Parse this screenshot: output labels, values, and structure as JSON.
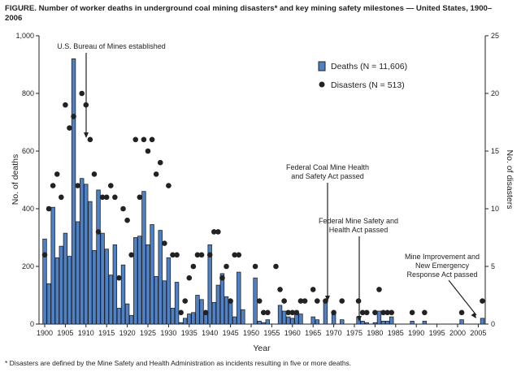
{
  "chart_data": {
    "type": "bar+scatter",
    "title": "FIGURE. Number of worker deaths in underground coal mining disasters* and key mining safety milestones — United States, 1900–2006",
    "footnote": "* Disasters are defined by the Mine Safety and Health Administration as incidents resulting in five or more deaths.",
    "xlabel": "Year",
    "ylabel": "No. of deaths",
    "y2label": "No. of disasters",
    "xlim": [
      1900,
      2006
    ],
    "ylim": [
      0,
      1000
    ],
    "y2lim": [
      0,
      25
    ],
    "x_ticks": [
      1900,
      1905,
      1910,
      1915,
      1920,
      1925,
      1930,
      1935,
      1940,
      1945,
      1950,
      1955,
      1960,
      1965,
      1970,
      1975,
      1980,
      1985,
      1990,
      1995,
      2000,
      2005
    ],
    "y_ticks": [
      "0",
      "200",
      "400",
      "600",
      "800",
      "1,000"
    ],
    "y2_ticks": [
      "0",
      "5",
      "10",
      "15",
      "20",
      "25"
    ],
    "legend": {
      "placement": "top-right",
      "deaths": "Deaths (N = 11,606)",
      "disasters": "Disasters (N = 513)"
    },
    "colors": {
      "bar": "#4f81c7",
      "dot": "#222222"
    },
    "deaths": {
      "1900": 295,
      "1901": 140,
      "1902": 405,
      "1903": 230,
      "1904": 270,
      "1905": 315,
      "1906": 235,
      "1907": 920,
      "1908": 355,
      "1909": 505,
      "1910": 485,
      "1911": 425,
      "1912": 255,
      "1913": 465,
      "1914": 315,
      "1915": 260,
      "1916": 170,
      "1917": 275,
      "1918": 55,
      "1919": 205,
      "1920": 70,
      "1921": 30,
      "1922": 300,
      "1923": 305,
      "1924": 460,
      "1925": 275,
      "1926": 345,
      "1927": 165,
      "1928": 325,
      "1929": 150,
      "1930": 230,
      "1931": 55,
      "1932": 145,
      "1933": 5,
      "1934": 20,
      "1935": 35,
      "1936": 40,
      "1937": 100,
      "1938": 85,
      "1939": 40,
      "1940": 275,
      "1941": 75,
      "1942": 135,
      "1943": 175,
      "1944": 95,
      "1945": 75,
      "1946": 25,
      "1947": 180,
      "1948": 50,
      "1951": 160,
      "1952": 10,
      "1953": 5,
      "1954": 15,
      "1957": 65,
      "1958": 45,
      "1959": 25,
      "1960": 20,
      "1961": 45,
      "1962": 35,
      "1965": 25,
      "1966": 15,
      "1968": 80,
      "1970": 40,
      "1972": 15,
      "1976": 25,
      "1977": 10,
      "1978": 5,
      "1980": 5,
      "1981": 45,
      "1982": 10,
      "1983": 10,
      "1984": 25,
      "1989": 10,
      "1992": 10,
      "2001": 15,
      "2006": 20
    },
    "disasters": {
      "1900": 6,
      "1901": 10,
      "1902": 12,
      "1903": 13,
      "1904": 11,
      "1905": 19,
      "1906": 17,
      "1907": 18,
      "1908": 12,
      "1909": 20,
      "1910": 19,
      "1911": 16,
      "1912": 13,
      "1913": 8,
      "1914": 11,
      "1915": 11,
      "1916": 12,
      "1917": 11,
      "1918": 4,
      "1919": 10,
      "1920": 9,
      "1921": 6,
      "1922": 16,
      "1923": 11,
      "1924": 16,
      "1925": 15,
      "1926": 16,
      "1927": 13,
      "1928": 14,
      "1929": 7,
      "1930": 12,
      "1931": 6,
      "1932": 6,
      "1933": 1,
      "1934": 2,
      "1935": 4,
      "1936": 5,
      "1937": 6,
      "1938": 6,
      "1939": 1,
      "1940": 6,
      "1941": 8,
      "1942": 8,
      "1943": 4,
      "1944": 5,
      "1945": 2,
      "1946": 6,
      "1947": 6,
      "1951": 5,
      "1952": 2,
      "1953": 1,
      "1954": 1,
      "1956": 5,
      "1957": 3,
      "1958": 2,
      "1959": 1,
      "1960": 1,
      "1961": 1,
      "1962": 2,
      "1963": 2,
      "1965": 3,
      "1966": 2,
      "1968": 2,
      "1970": 1,
      "1972": 2,
      "1976": 2,
      "1977": 1,
      "1978": 1,
      "1980": 1,
      "1981": 3,
      "1982": 1,
      "1983": 1,
      "1984": 1,
      "1989": 1,
      "1992": 1,
      "2001": 1,
      "2006": 2
    },
    "annotations": [
      {
        "year": 1910,
        "lines": [
          "U.S. Bureau of Mines established"
        ]
      },
      {
        "year": 1969,
        "lines": [
          "Federal Coal Mine Health",
          "and Safety Act passed"
        ]
      },
      {
        "year": 1977,
        "lines": [
          "Federal Mine Safety and",
          "Health Act passed"
        ]
      },
      {
        "year": 2006,
        "lines": [
          "Mine Improvement and",
          "New Emergency",
          "Response Act passed"
        ]
      }
    ]
  }
}
